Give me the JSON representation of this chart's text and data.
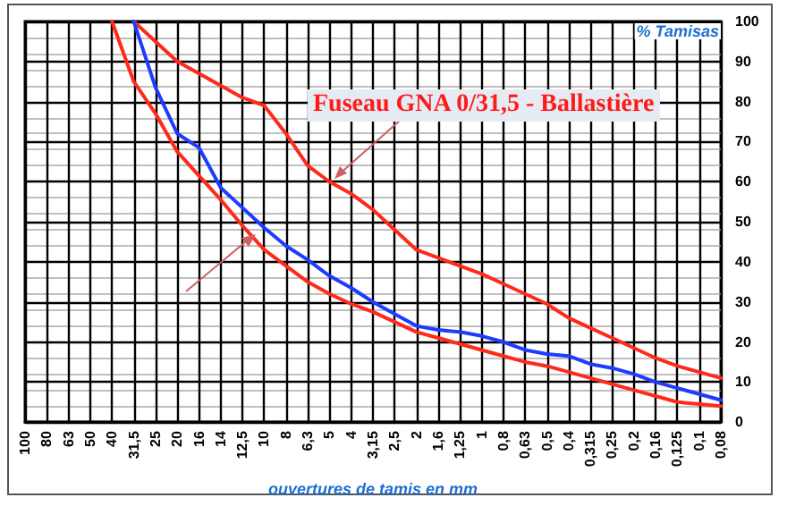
{
  "chart_data": {
    "type": "line",
    "categories": [
      "100",
      "80",
      "63",
      "50",
      "40",
      "31,5",
      "25",
      "20",
      "16",
      "14",
      "12,5",
      "10",
      "8",
      "6,3",
      "5",
      "4",
      "3,15",
      "2,5",
      "2",
      "1,6",
      "1,25",
      "1",
      "0,8",
      "0,63",
      "0,5",
      "0,4",
      "0,315",
      "0,25",
      "0,2",
      "0,16",
      "0,125",
      "0,1",
      "0,08"
    ],
    "series": [
      {
        "color": "#ff2a1a",
        "values": [
          null,
          null,
          null,
          null,
          null,
          100,
          95,
          90,
          87,
          84,
          81,
          79,
          72,
          64,
          60,
          57,
          53,
          48,
          43,
          41,
          39,
          37,
          34.5,
          32,
          29.5,
          26,
          23.5,
          21,
          18.5,
          16,
          14,
          12.5,
          11
        ]
      },
      {
        "color": "#ff2a1a",
        "values": [
          null,
          null,
          null,
          null,
          100,
          85,
          77,
          67.5,
          61.5,
          55.5,
          49,
          43,
          39,
          35,
          32,
          29.5,
          27.5,
          25,
          22.5,
          21,
          19.5,
          18,
          16.5,
          15,
          14,
          12.5,
          11,
          9.5,
          8,
          6.5,
          5,
          4.5,
          4
        ]
      },
      {
        "color": "#1e3cff",
        "values": [
          null,
          null,
          null,
          null,
          null,
          100,
          83.5,
          72,
          68.5,
          58.5,
          53.5,
          48.5,
          44,
          40.5,
          36.5,
          33.5,
          30,
          27,
          24,
          23,
          22.5,
          21.5,
          20,
          18,
          17,
          16.5,
          14.5,
          13.5,
          12,
          10,
          8.5,
          7,
          5.5
        ]
      }
    ],
    "ylim": [
      0,
      100
    ],
    "yticks": [
      0,
      10,
      20,
      30,
      40,
      50,
      60,
      70,
      80,
      90,
      100
    ],
    "xlabel": "ouvertures de tamis en mm",
    "ylabel": "% Tamisas",
    "annotations": [
      "Fuseau GNA 0/31,5 - Ballastière"
    ],
    "grid": true,
    "marker": "none",
    "line_style": "solid",
    "tick_labels": "xy"
  }
}
